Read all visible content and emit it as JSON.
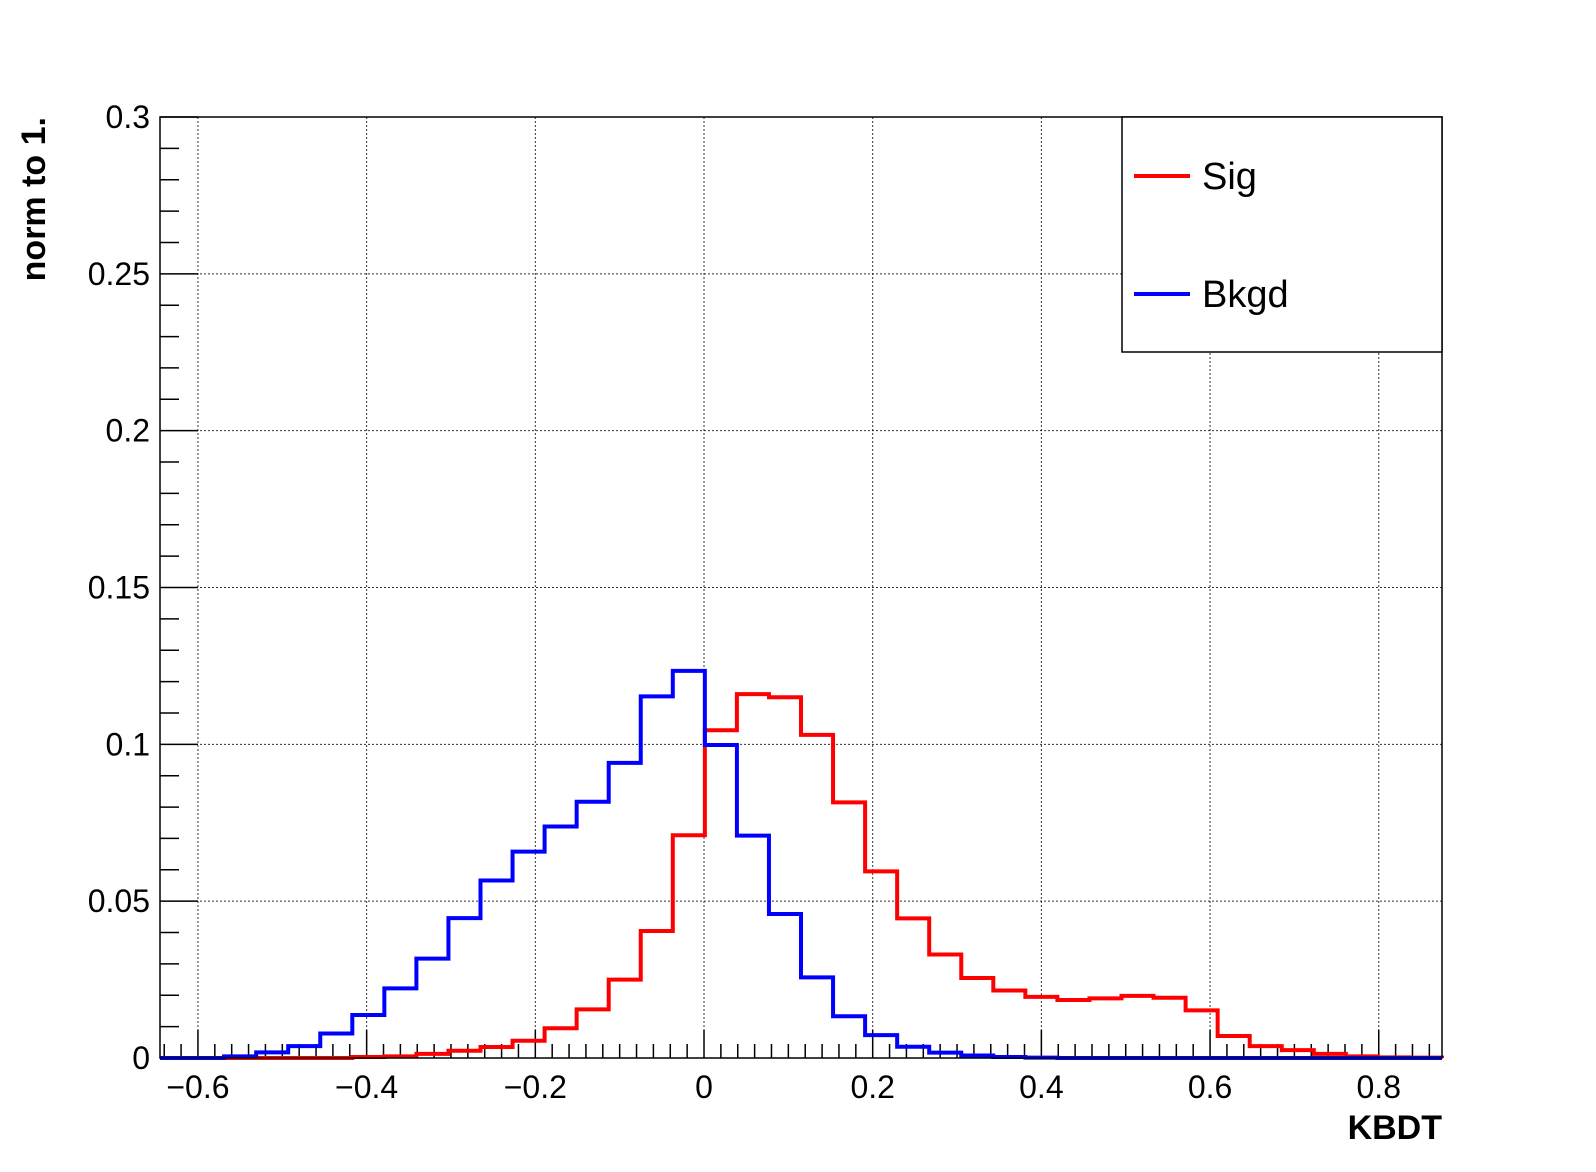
{
  "chart_data": {
    "type": "histogram",
    "title": "",
    "xlabel": "KBDT",
    "ylabel": "norm to 1.",
    "xlim": [
      -0.645,
      0.875
    ],
    "ylim": [
      0,
      0.3
    ],
    "xticks": [
      -0.6,
      -0.4,
      -0.2,
      0,
      0.2,
      0.4,
      0.6,
      0.8
    ],
    "xtick_labels": [
      "−0.6",
      "−0.4",
      "−0.2",
      "0",
      "0.2",
      "0.4",
      "0.6",
      "0.8"
    ],
    "yticks": [
      0,
      0.05,
      0.1,
      0.15,
      0.2,
      0.25,
      0.3
    ],
    "ytick_labels": [
      "0",
      "0.05",
      "0.1",
      "0.15",
      "0.2",
      "0.25",
      "0.3"
    ],
    "grid": true,
    "legend_position": "top-right",
    "bin_edges": [
      -0.645,
      -0.607,
      -0.569,
      -0.531,
      -0.493,
      -0.455,
      -0.417,
      -0.379,
      -0.341,
      -0.303,
      -0.265,
      -0.227,
      -0.189,
      -0.151,
      -0.113,
      -0.075,
      -0.037,
      0.001,
      0.039,
      0.077,
      0.115,
      0.153,
      0.191,
      0.229,
      0.267,
      0.305,
      0.343,
      0.381,
      0.419,
      0.457,
      0.495,
      0.533,
      0.571,
      0.609,
      0.647,
      0.685,
      0.723,
      0.761,
      0.799,
      0.837,
      0.875
    ],
    "series": [
      {
        "name": "Sig",
        "color": "#ff0000",
        "values": [
          0,
          0,
          0,
          0,
          0,
          0,
          0.0003,
          0.0005,
          0.0013,
          0.0023,
          0.0035,
          0.0055,
          0.0095,
          0.0155,
          0.025,
          0.0405,
          0.071,
          0.1045,
          0.116,
          0.115,
          0.103,
          0.0815,
          0.0595,
          0.0445,
          0.033,
          0.0255,
          0.0215,
          0.0195,
          0.0185,
          0.019,
          0.0198,
          0.0192,
          0.0152,
          0.007,
          0.0038,
          0.0025,
          0.0013,
          0.0005,
          0.0002,
          0.0001
        ]
      },
      {
        "name": "Bkgd",
        "color": "#0000ff",
        "values": [
          0,
          0,
          0.0005,
          0.0018,
          0.0038,
          0.0078,
          0.0137,
          0.0222,
          0.0317,
          0.0446,
          0.0566,
          0.0658,
          0.0738,
          0.0817,
          0.0941,
          0.1153,
          0.1234,
          0.0998,
          0.0709,
          0.0459,
          0.0257,
          0.0133,
          0.0073,
          0.0036,
          0.0017,
          0.0008,
          0.0003,
          0.0001,
          0,
          0,
          0,
          0,
          0,
          0,
          0,
          0,
          0,
          0,
          0,
          0
        ]
      }
    ]
  }
}
